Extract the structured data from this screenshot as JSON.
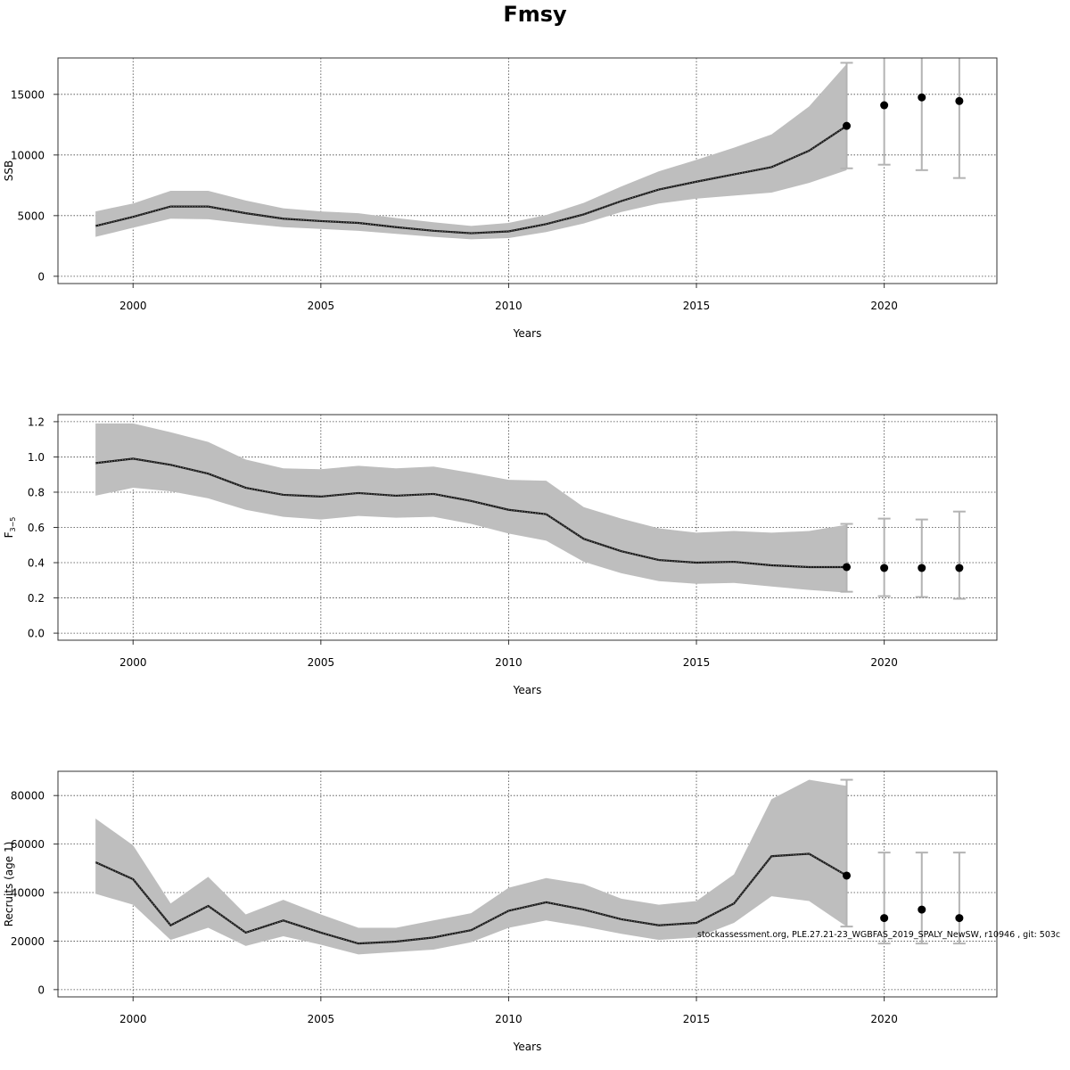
{
  "figure": {
    "title": "Fmsy",
    "credit": "stockassessment.org, PLE.27.21-23_WGBFAS_2019_SPALY_NewSW, r10946 , git: 503c"
  },
  "colors": {
    "band": "#bebebe",
    "line": "#1a1a1a",
    "point": "#000000",
    "errorbar": "#b3b3b3",
    "grid": "#444444",
    "frame": "#333333"
  },
  "chart_data": [
    {
      "type": "line",
      "id": "ssb",
      "xlabel": "Years",
      "ylabel": "SSB",
      "xlim": [
        1998,
        2023
      ],
      "ylim": [
        -600,
        18000
      ],
      "xticks": [
        2000,
        2005,
        2010,
        2015,
        2020
      ],
      "yticks": [
        0,
        5000,
        10000,
        15000
      ],
      "grid": true,
      "series": [
        {
          "x": [
            1999,
            2000,
            2001,
            2002,
            2003,
            2004,
            2005,
            2006,
            2007,
            2008,
            2009,
            2010,
            2011,
            2012,
            2013,
            2014,
            2015,
            2016,
            2017,
            2018,
            2019
          ],
          "values": [
            4150,
            4900,
            5750,
            5750,
            5200,
            4750,
            4550,
            4400,
            4050,
            3750,
            3550,
            3700,
            4300,
            5100,
            6200,
            7150,
            7800,
            8400,
            9000,
            10350,
            12400
          ],
          "lower": [
            3250,
            4000,
            4750,
            4700,
            4350,
            4050,
            3900,
            3750,
            3500,
            3250,
            3050,
            3150,
            3650,
            4350,
            5300,
            6000,
            6400,
            6650,
            6900,
            7700,
            8750
          ],
          "upper": [
            5350,
            6000,
            7050,
            7050,
            6250,
            5600,
            5350,
            5200,
            4800,
            4450,
            4150,
            4400,
            5050,
            6050,
            7400,
            8650,
            9600,
            10600,
            11700,
            14000,
            17500
          ]
        }
      ],
      "forecast": [
        {
          "x": 2019,
          "value": 12400,
          "lower": 8900,
          "upper": 17600
        },
        {
          "x": 2020,
          "value": 14100,
          "lower": 9200,
          "upper": 18500
        },
        {
          "x": 2021,
          "value": 14750,
          "lower": 8750,
          "upper": 18500
        },
        {
          "x": 2022,
          "value": 14450,
          "lower": 8100,
          "upper": 18500
        }
      ]
    },
    {
      "type": "line",
      "id": "fbar",
      "xlabel": "Years",
      "ylabel": "F",
      "ylabel_sub": "3−5",
      "xlim": [
        1998,
        2023
      ],
      "ylim": [
        -0.04,
        1.24
      ],
      "xticks": [
        2000,
        2005,
        2010,
        2015,
        2020
      ],
      "yticks": [
        "0.0",
        "0.2",
        "0.4",
        "0.6",
        "0.8",
        "1.0",
        "1.2"
      ],
      "grid": true,
      "series": [
        {
          "x": [
            1999,
            2000,
            2001,
            2002,
            2003,
            2004,
            2005,
            2006,
            2007,
            2008,
            2009,
            2010,
            2011,
            2012,
            2013,
            2014,
            2015,
            2016,
            2017,
            2018,
            2019
          ],
          "values": [
            0.965,
            0.99,
            0.955,
            0.905,
            0.825,
            0.785,
            0.775,
            0.795,
            0.78,
            0.79,
            0.75,
            0.7,
            0.675,
            0.535,
            0.465,
            0.415,
            0.4,
            0.405,
            0.385,
            0.375,
            0.375
          ],
          "lower": [
            0.78,
            0.825,
            0.805,
            0.765,
            0.7,
            0.66,
            0.645,
            0.665,
            0.655,
            0.66,
            0.62,
            0.565,
            0.525,
            0.405,
            0.34,
            0.295,
            0.28,
            0.285,
            0.265,
            0.245,
            0.23
          ],
          "upper": [
            1.19,
            1.19,
            1.14,
            1.085,
            0.985,
            0.935,
            0.93,
            0.95,
            0.935,
            0.945,
            0.91,
            0.87,
            0.865,
            0.715,
            0.65,
            0.595,
            0.57,
            0.58,
            0.57,
            0.58,
            0.615
          ]
        }
      ],
      "forecast": [
        {
          "x": 2019,
          "value": 0.375,
          "lower": 0.235,
          "upper": 0.62
        },
        {
          "x": 2020,
          "value": 0.37,
          "lower": 0.21,
          "upper": 0.65
        },
        {
          "x": 2021,
          "value": 0.37,
          "lower": 0.205,
          "upper": 0.645
        },
        {
          "x": 2022,
          "value": 0.37,
          "lower": 0.195,
          "upper": 0.69
        }
      ]
    },
    {
      "type": "line",
      "id": "recruits",
      "xlabel": "Years",
      "ylabel": "Recruits (age 1)",
      "xlim": [
        1998,
        2023
      ],
      "ylim": [
        -3000,
        90000
      ],
      "xticks": [
        2000,
        2005,
        2010,
        2015,
        2020
      ],
      "yticks": [
        0,
        20000,
        40000,
        60000,
        80000
      ],
      "grid": true,
      "series": [
        {
          "x": [
            1999,
            2000,
            2001,
            2002,
            2003,
            2004,
            2005,
            2006,
            2007,
            2008,
            2009,
            2010,
            2011,
            2012,
            2013,
            2014,
            2015,
            2016,
            2017,
            2018,
            2019
          ],
          "values": [
            52500,
            45500,
            26500,
            34500,
            23500,
            28500,
            23500,
            19000,
            19800,
            21500,
            24500,
            32500,
            36000,
            33000,
            29000,
            26500,
            27500,
            35500,
            55000,
            56000,
            47000
          ],
          "lower": [
            39500,
            35000,
            20500,
            25500,
            18000,
            22000,
            18500,
            14500,
            15500,
            16500,
            19500,
            25500,
            28500,
            26000,
            23000,
            20500,
            21500,
            27500,
            38500,
            36500,
            26000
          ],
          "upper": [
            70500,
            59500,
            35500,
            46500,
            31000,
            37000,
            31000,
            25500,
            25500,
            28500,
            31500,
            42000,
            46000,
            43500,
            37500,
            35000,
            36500,
            47500,
            78500,
            86500,
            84000
          ]
        }
      ],
      "forecast": [
        {
          "x": 2019,
          "value": 47000,
          "lower": 26000,
          "upper": 86500
        },
        {
          "x": 2020,
          "value": 29500,
          "lower": 19000,
          "upper": 56500
        },
        {
          "x": 2021,
          "value": 33000,
          "lower": 19000,
          "upper": 56500
        },
        {
          "x": 2022,
          "value": 29500,
          "lower": 19000,
          "upper": 56500
        }
      ]
    }
  ]
}
